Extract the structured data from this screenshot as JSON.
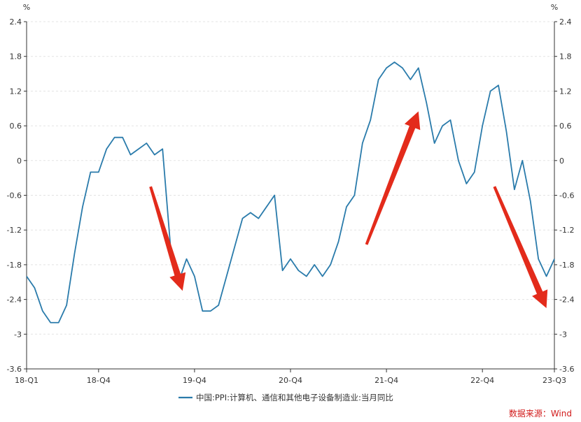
{
  "chart_data": {
    "type": "line",
    "title": "",
    "ylabel_left": "%",
    "ylabel_right": "%",
    "ylim": [
      -3.6,
      2.4
    ],
    "yticks": [
      2.4,
      1.8,
      1.2,
      0.6,
      0,
      -0.6,
      -1.2,
      -1.8,
      -2.4,
      -3,
      -3.6
    ],
    "yticklabels": [
      "2.4",
      "1.8",
      "1.2",
      "0.6",
      "0",
      "-0.6",
      "-1.2",
      "-1.8",
      "-2.4",
      "-3",
      "-3.6"
    ],
    "xticklabels": [
      "18-Q1",
      "18-Q4",
      "19-Q4",
      "20-Q4",
      "21-Q4",
      "22-Q4",
      "23-Q3"
    ],
    "xtick_month_index": [
      0,
      9,
      21,
      33,
      45,
      57,
      66
    ],
    "x_range_month_index": [
      0,
      66
    ],
    "grid": true,
    "legend_position": "bottom",
    "series": [
      {
        "name": "中国:PPI:计算机、通信和其他电子设备制造业:当月同比",
        "color": "#2a7bab",
        "values": [
          -2.0,
          -2.2,
          -2.6,
          -2.8,
          -2.8,
          -2.5,
          -1.6,
          -0.8,
          -0.2,
          -0.2,
          0.2,
          0.4,
          0.4,
          0.1,
          0.2,
          0.3,
          0.1,
          0.2,
          -1.5,
          -2.1,
          -1.7,
          -2.0,
          -2.6,
          -2.6,
          -2.5,
          -2.0,
          -1.5,
          -1.0,
          -0.9,
          -1.0,
          -0.8,
          -0.6,
          -1.9,
          -1.7,
          -1.9,
          -2.0,
          -1.8,
          -2.0,
          -1.8,
          -1.4,
          -0.8,
          -0.6,
          0.3,
          0.7,
          1.4,
          1.6,
          1.7,
          1.6,
          1.4,
          1.6,
          1.0,
          0.3,
          0.6,
          0.7,
          0.0,
          -0.4,
          -0.2,
          0.6,
          1.2,
          1.3,
          0.5,
          -0.5,
          0.0,
          -0.7,
          -1.7,
          -2.0,
          -1.7
        ]
      }
    ],
    "annotations": [
      {
        "type": "arrow",
        "color": "#e32b1b",
        "direction": "down",
        "from": {
          "x": 15.5,
          "y": -0.45
        },
        "to": {
          "x": 19.5,
          "y": -2.25
        }
      },
      {
        "type": "arrow",
        "color": "#e32b1b",
        "direction": "up",
        "from": {
          "x": 42.5,
          "y": -1.45
        },
        "to": {
          "x": 49,
          "y": 0.85
        }
      },
      {
        "type": "arrow",
        "color": "#e32b1b",
        "direction": "down",
        "from": {
          "x": 58.5,
          "y": -0.45
        },
        "to": {
          "x": 65,
          "y": -2.55
        }
      }
    ]
  },
  "source_text": "数据来源：Wind"
}
